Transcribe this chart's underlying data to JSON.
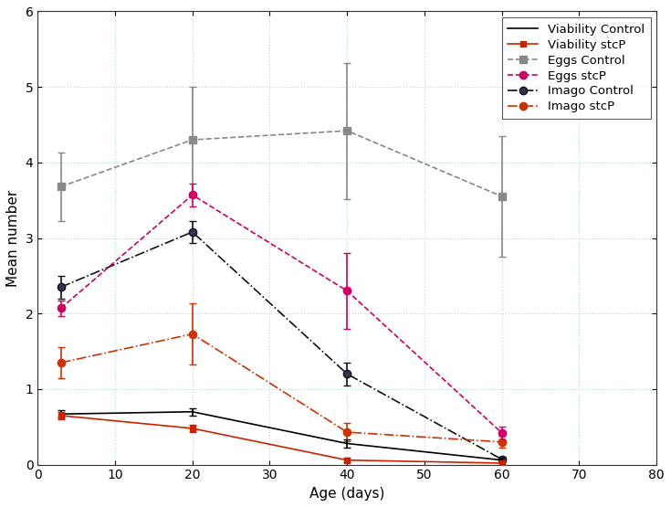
{
  "x": [
    3,
    20,
    40,
    60
  ],
  "viability_control": {
    "y": [
      0.67,
      0.7,
      0.28,
      0.06
    ],
    "yerr": [
      0.05,
      0.05,
      0.05,
      0.03
    ]
  },
  "viability_stcP": {
    "y": [
      0.65,
      0.48,
      0.06,
      0.02
    ],
    "yerr": [
      0.05,
      0.05,
      0.03,
      0.02
    ]
  },
  "eggs_control": {
    "y": [
      3.68,
      4.3,
      4.42,
      3.55
    ],
    "yerr": [
      0.45,
      0.7,
      0.9,
      0.8
    ]
  },
  "eggs_stcP": {
    "y": [
      2.07,
      3.57,
      2.3,
      0.42
    ],
    "yerr": [
      0.1,
      0.15,
      0.5,
      0.08
    ]
  },
  "imago_control": {
    "y": [
      2.35,
      3.08,
      1.2,
      0.07
    ],
    "yerr": [
      0.15,
      0.15,
      0.15,
      0.03
    ]
  },
  "imago_stcP": {
    "y": [
      1.35,
      1.73,
      0.43,
      0.3
    ],
    "yerr": [
      0.2,
      0.4,
      0.12,
      0.08
    ]
  },
  "xlabel": "Age (days)",
  "ylabel": "Mean number",
  "xlim": [
    0,
    80
  ],
  "ylim": [
    0,
    6
  ],
  "xticks": [
    0,
    10,
    20,
    30,
    40,
    50,
    60,
    70,
    80
  ],
  "yticks": [
    0,
    1,
    2,
    3,
    4,
    5,
    6
  ],
  "colors": {
    "viability_control": "#000000",
    "viability_stcP": "#cc2200",
    "eggs_control": "#888888",
    "eggs_stcP": "#cc0066",
    "imago_control": "#111111",
    "imago_stcP": "#cc3300"
  },
  "legend_labels": [
    "Viability Control",
    "Viability stcP",
    "Eggs Control",
    "Eggs stcP",
    "Imago Control",
    "Imago stcP"
  ],
  "background_color": "#ffffff",
  "label_fontsize": 11,
  "tick_fontsize": 10,
  "legend_fontsize": 9.5
}
